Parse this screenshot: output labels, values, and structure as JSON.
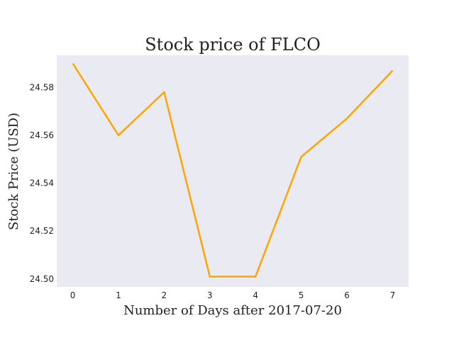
{
  "chart_data": {
    "type": "line",
    "title": "Stock price of FLCO",
    "xlabel": "Number of Days after 2017-07-20",
    "ylabel": "Stock Price (USD)",
    "x": [
      0,
      1,
      2,
      3,
      4,
      5,
      6,
      7
    ],
    "series": [
      {
        "name": "FLCO",
        "values": [
          24.59,
          24.56,
          24.578,
          24.501,
          24.501,
          24.551,
          24.567,
          24.587
        ],
        "color": "#FFA500"
      }
    ],
    "xlim": [
      -0.35,
      7.35
    ],
    "ylim": [
      24.4967,
      24.5934
    ],
    "xticks": [
      0,
      1,
      2,
      3,
      4,
      5,
      6,
      7
    ],
    "yticks": [
      24.5,
      24.52,
      24.54,
      24.56,
      24.58
    ],
    "ytick_labels": [
      "24.50",
      "24.52",
      "24.54",
      "24.56",
      "24.58"
    ],
    "grid": false,
    "background": "#EAEAF2"
  }
}
